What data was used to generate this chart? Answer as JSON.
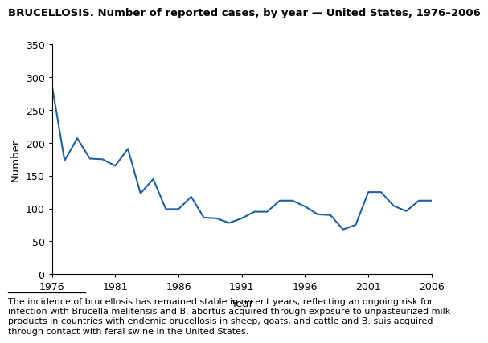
{
  "title": "BRUCELLOSIS. Number of reported cases, by year — United States, 1976–2006",
  "xlabel": "Year",
  "ylabel": "Number",
  "line_color": "#2060a0",
  "line_width": 1.5,
  "background_color": "#ffffff",
  "ylim": [
    0,
    350
  ],
  "yticks": [
    0,
    50,
    100,
    150,
    200,
    250,
    300,
    350
  ],
  "xticks": [
    1976,
    1981,
    1986,
    1991,
    1996,
    2001,
    2006
  ],
  "years": [
    1976,
    1977,
    1978,
    1979,
    1980,
    1981,
    1982,
    1983,
    1984,
    1985,
    1986,
    1987,
    1988,
    1989,
    1990,
    1991,
    1992,
    1993,
    1994,
    1995,
    1996,
    1997,
    1998,
    1999,
    2000,
    2001,
    2002,
    2003,
    2004,
    2005,
    2006
  ],
  "values": [
    288,
    173,
    207,
    176,
    175,
    165,
    191,
    123,
    145,
    99,
    99,
    118,
    86,
    85,
    78,
    85,
    95,
    95,
    112,
    112,
    103,
    91,
    90,
    68,
    75,
    125,
    125,
    104,
    96,
    112,
    112
  ],
  "footer_text": "The incidence of brucellosis has remained stable in recent years, reflecting an ongoing risk for\ninfection with Brucella melitensis and B. abortus acquired through exposure to unpasteurized milk\nproducts in countries with endemic brucellosis in sheep, goats, and cattle and B. suis acquired\nthrough contact with feral swine in the United States.",
  "title_fontsize": 9.5,
  "axis_fontsize": 9,
  "footer_fontsize": 8.0
}
